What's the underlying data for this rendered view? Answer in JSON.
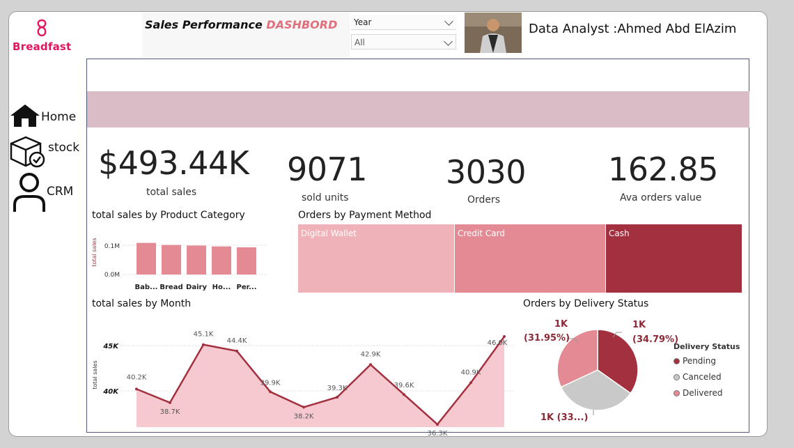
{
  "header": {
    "logo_text": "Breadfast",
    "title_main": "Sales Performance ",
    "title_accent": "DASHBORD",
    "filter_label": "Year",
    "filter_value": "All",
    "analyst": "Data Analyst :Ahmed Abd ElAzim"
  },
  "nav": [
    {
      "label": "Home",
      "icon": "home-icon"
    },
    {
      "label": "stock",
      "icon": "stock-box-icon"
    },
    {
      "label": "CRM",
      "icon": "user-icon"
    }
  ],
  "kpis": {
    "total_sales": {
      "value": "$493.44K",
      "label": "total sales"
    },
    "sold_units": {
      "value": "9071",
      "label": "sold units"
    },
    "orders": {
      "value": "3030",
      "label": "Orders"
    },
    "avg_order": {
      "value": "162.85",
      "label": "Ava orders value"
    }
  },
  "colors": {
    "brand": "#e4155f",
    "dark_red": "#a3303f",
    "mid_pink": "#e48a94",
    "light_pink": "#efb2b8",
    "area_fill": "#f5c9cf",
    "band": "#d9bcc5"
  },
  "category_chart": {
    "title": "total sales by Product Category",
    "ylabel": "total sales",
    "ticks": [
      "0.1M",
      "0.0M"
    ]
  },
  "payment": {
    "title": "Orders by Payment Method",
    "tiles": [
      {
        "label": "Digital Wallet"
      },
      {
        "label": "Credit Card"
      },
      {
        "label": "Cash"
      }
    ]
  },
  "month_chart": {
    "title": "total sales by Month",
    "ylabel": "total sales",
    "ticks": [
      "45K",
      "40K"
    ]
  },
  "delivery": {
    "title": "Orders by Delivery Status",
    "legend_title": "Delivery Status",
    "slice_labels": [
      "1K (34.79%)",
      "1K (33...)",
      "1K (31.95%)"
    ],
    "label_pending": "1K",
    "label_pending_pct": "(34.79%)",
    "label_delivered": "1K",
    "label_delivered_pct": "(31.95%)",
    "label_canceled": "1K (33...)",
    "legend": [
      {
        "label": "Pending",
        "color": "#a3303f"
      },
      {
        "label": "Canceled",
        "color": "#c9c9c9"
      },
      {
        "label": "Delivered",
        "color": "#e48a94"
      }
    ]
  },
  "chart_data": [
    {
      "type": "bar",
      "title": "total sales by Product Category",
      "ylabel": "total sales",
      "categories": [
        "Bab...",
        "Bread",
        "Dairy",
        "Ho...",
        "Per..."
      ],
      "values": [
        0.108,
        0.101,
        0.099,
        0.096,
        0.093
      ],
      "ylim": [
        0,
        0.12
      ],
      "grid": true
    },
    {
      "type": "area",
      "title": "total sales by Month",
      "ylabel": "total sales",
      "x": [
        "1",
        "2",
        "3",
        "4",
        "5",
        "6",
        "7",
        "8",
        "9",
        "10",
        "11",
        "12"
      ],
      "values": [
        40.2,
        38.7,
        45.1,
        44.4,
        39.9,
        38.2,
        39.3,
        42.9,
        39.6,
        36.3,
        40.9,
        46.0
      ],
      "data_labels": [
        "40.2K",
        "38.7K",
        "45.1K",
        "44.4K",
        "39.9K",
        "38.2K",
        "39.3K",
        "42.9K",
        "39.6K",
        "36.3K",
        "40.9K",
        "46.0K"
      ],
      "yticks": [
        40,
        45
      ],
      "grid": true
    },
    {
      "type": "pie",
      "title": "Orders by Delivery Status",
      "categories": [
        "Pending",
        "Canceled",
        "Delivered"
      ],
      "values": [
        34.79,
        33.26,
        31.95
      ]
    }
  ]
}
